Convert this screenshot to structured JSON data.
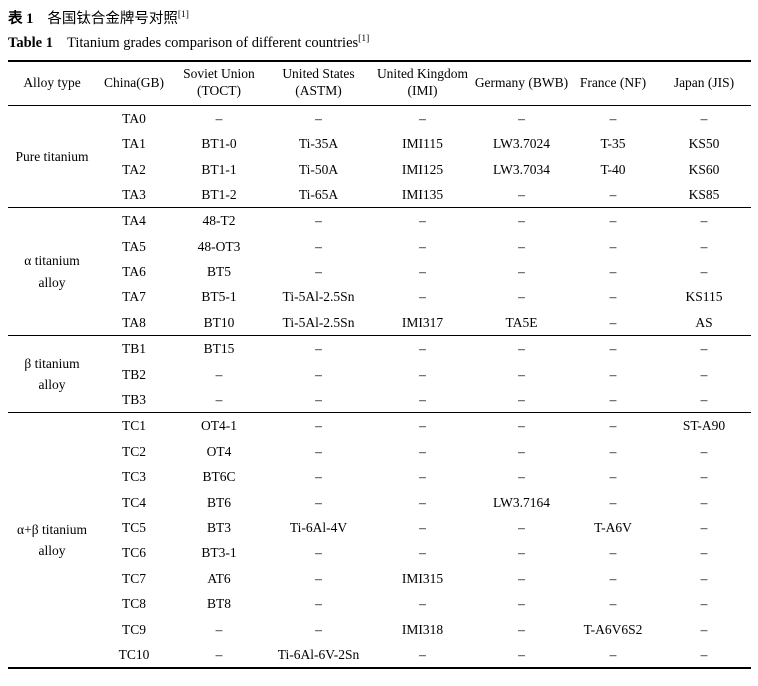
{
  "caption_cn": {
    "label": "表 1",
    "text": "各国钛合金牌号对照",
    "superscript": "[1]"
  },
  "caption_en": {
    "label": "Table 1",
    "text": "Titanium grades comparison of different countries",
    "superscript": "[1]"
  },
  "table": {
    "columns": [
      {
        "line1": "Alloy type",
        "line2": ""
      },
      {
        "line1": "China(GB)",
        "line2": ""
      },
      {
        "line1": "Soviet Union",
        "line2": "(TOCT)"
      },
      {
        "line1": "United States",
        "line2": "(ASTM)"
      },
      {
        "line1": "United Kingdom",
        "line2": "(IMI)"
      },
      {
        "line1": "Germany (BWB)",
        "line2": ""
      },
      {
        "line1": "France (NF)",
        "line2": ""
      },
      {
        "line1": "Japan (JIS)",
        "line2": ""
      }
    ],
    "groups": [
      {
        "type": "Pure titanium",
        "type_lines": [
          "Pure titanium"
        ],
        "rows": [
          [
            "TA0",
            "–",
            "–",
            "–",
            "–",
            "–",
            "–"
          ],
          [
            "TA1",
            "BT1-0",
            "Ti-35A",
            "IMI115",
            "LW3.7024",
            "T-35",
            "KS50"
          ],
          [
            "TA2",
            "BT1-1",
            "Ti-50A",
            "IMI125",
            "LW3.7034",
            "T-40",
            "KS60"
          ],
          [
            "TA3",
            "BT1-2",
            "Ti-65A",
            "IMI135",
            "–",
            "–",
            "KS85"
          ]
        ]
      },
      {
        "type": "α titanium alloy",
        "type_lines": [
          "α titanium",
          "alloy"
        ],
        "rows": [
          [
            "TA4",
            "48-T2",
            "–",
            "–",
            "–",
            "–",
            "–"
          ],
          [
            "TA5",
            "48-OT3",
            "–",
            "–",
            "–",
            "–",
            "–"
          ],
          [
            "TA6",
            "BT5",
            "–",
            "–",
            "–",
            "–",
            "–"
          ],
          [
            "TA7",
            "BT5-1",
            "Ti-5Al-2.5Sn",
            "–",
            "–",
            "–",
            "KS115"
          ],
          [
            "TA8",
            "BT10",
            "Ti-5Al-2.5Sn",
            "IMI317",
            "TA5E",
            "–",
            "AS"
          ]
        ]
      },
      {
        "type": "β titanium alloy",
        "type_lines": [
          "β titanium",
          "alloy"
        ],
        "rows": [
          [
            "TB1",
            "BT15",
            "–",
            "–",
            "–",
            "–",
            "–"
          ],
          [
            "TB2",
            "–",
            "–",
            "–",
            "–",
            "–",
            "–"
          ],
          [
            "TB3",
            "–",
            "–",
            "–",
            "–",
            "–",
            "–"
          ]
        ]
      },
      {
        "type": "α+β titanium alloy",
        "type_lines": [
          "α+β titanium",
          "alloy"
        ],
        "rows": [
          [
            "TC1",
            "OT4-1",
            "–",
            "–",
            "–",
            "–",
            "ST-A90"
          ],
          [
            "TC2",
            "OT4",
            "–",
            "–",
            "–",
            "–",
            "–"
          ],
          [
            "TC3",
            "BT6C",
            "–",
            "–",
            "–",
            "–",
            "–"
          ],
          [
            "TC4",
            "BT6",
            "–",
            "–",
            "LW3.7164",
            "–",
            "–"
          ],
          [
            "TC5",
            "BT3",
            "Ti-6Al-4V",
            "–",
            "–",
            "T-A6V",
            "–"
          ],
          [
            "TC6",
            "BT3-1",
            "–",
            "–",
            "–",
            "–",
            "–"
          ],
          [
            "TC7",
            "AT6",
            "–",
            "IMI315",
            "–",
            "–",
            "–"
          ],
          [
            "TC8",
            "BT8",
            "–",
            "–",
            "–",
            "–",
            "–"
          ],
          [
            "TC9",
            "–",
            "–",
            "IMI318",
            "–",
            "T-A6V6S2",
            "–"
          ],
          [
            "TC10",
            "–",
            "Ti-6Al-6V-2Sn",
            "–",
            "–",
            "–",
            "–"
          ]
        ]
      }
    ]
  }
}
